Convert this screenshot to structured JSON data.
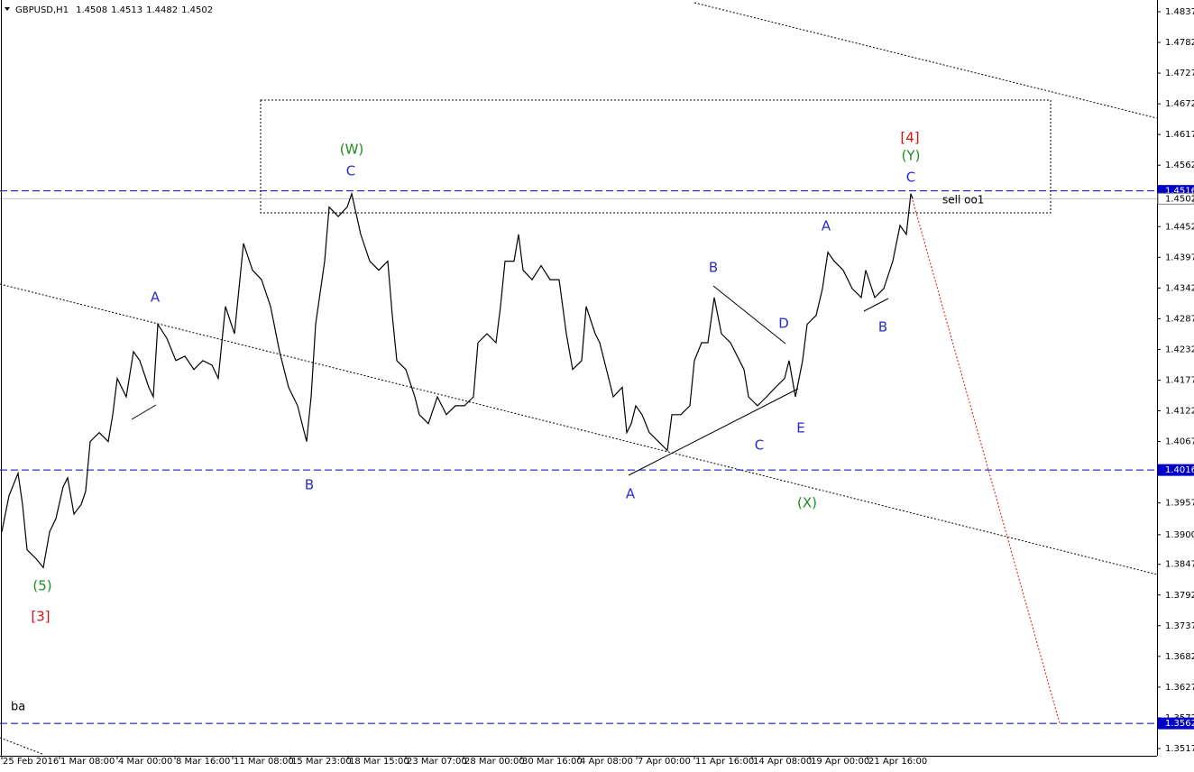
{
  "chart_data": {
    "type": "line",
    "title": "GBPUSD,H1",
    "ohlc": [
      1.4508,
      1.4513,
      1.4482,
      1.4502
    ],
    "xlim": [
      0,
      1283
    ],
    "ylim": [
      1.3504,
      1.4858
    ],
    "xticks": [
      {
        "value": 2,
        "label": "25 Feb 2016"
      },
      {
        "value": 66,
        "label": "1 Mar 08:00"
      },
      {
        "value": 130,
        "label": "4 Mar 00:00"
      },
      {
        "value": 194,
        "label": "8 Mar 16:00"
      },
      {
        "value": 258,
        "label": "11 Mar 08:00"
      },
      {
        "value": 322,
        "label": "15 Mar 23:00"
      },
      {
        "value": 386,
        "label": "18 Mar 15:00"
      },
      {
        "value": 450,
        "label": "23 Mar 07:00"
      },
      {
        "value": 514,
        "label": "28 Mar 00:00"
      },
      {
        "value": 578,
        "label": "30 Mar 16:00"
      },
      {
        "value": 642,
        "label": "4 Apr 08:00"
      },
      {
        "value": 706,
        "label": "7 Apr 00:00"
      },
      {
        "value": 770,
        "label": "11 Apr 16:00"
      },
      {
        "value": 834,
        "label": "14 Apr 08:00"
      },
      {
        "value": 898,
        "label": "19 Apr 00:00"
      },
      {
        "value": 962,
        "label": "21 Apr 16:00"
      }
    ],
    "yticks": [
      1.4837,
      1.4782,
      1.4727,
      1.4672,
      1.4617,
      1.4562,
      1.4452,
      1.4397,
      1.4342,
      1.4287,
      1.4232,
      1.4177,
      1.4122,
      1.4067,
      1.3957,
      {
        "value": 1.39,
        "label": "1.3900"
      },
      1.3847,
      1.3792,
      1.3737,
      1.3682,
      1.3627,
      1.3572,
      1.3517
    ],
    "levels": [
      {
        "value": 1.4516,
        "color": "#0000c8"
      },
      {
        "value": 1.4016,
        "color": "#0000c8"
      },
      {
        "value": 1.3562,
        "color": "#0000c8"
      }
    ],
    "last_price": {
      "value": 1.4502,
      "color": "#c0c0c0"
    },
    "x": [
      2,
      10,
      20,
      25,
      30,
      40,
      48,
      55,
      62,
      70,
      75,
      82,
      90,
      95,
      100,
      110,
      120,
      125,
      130,
      140,
      148,
      155,
      165,
      170,
      175,
      185,
      195,
      205,
      215,
      225,
      235,
      242,
      250,
      260,
      270,
      280,
      290,
      300,
      310,
      320,
      330,
      340,
      345,
      350,
      360,
      365,
      375,
      385,
      390,
      400,
      410,
      420,
      430,
      435,
      440,
      450,
      460,
      465,
      475,
      485,
      495,
      505,
      515,
      525,
      530,
      540,
      550,
      555,
      560,
      570,
      575,
      580,
      590,
      600,
      610,
      620,
      628,
      635,
      645,
      650,
      660,
      665,
      675,
      680,
      690,
      695,
      700,
      705,
      712,
      720,
      730,
      740,
      745,
      755,
      765,
      770,
      778,
      785,
      792,
      800,
      810,
      820,
      825,
      830,
      840,
      850,
      860,
      870,
      875,
      882,
      890,
      895,
      905,
      912,
      918,
      925,
      935,
      945,
      955,
      960,
      970,
      980,
      990,
      998,
      1005,
      1010,
      1012
    ],
    "series": [
      {
        "color": "#000000",
        "values": [
          1.3905,
          1.397,
          1.401,
          1.3954,
          1.3873,
          1.3857,
          1.3841,
          1.3905,
          1.3929,
          1.3986,
          1.4002,
          1.3937,
          1.3954,
          1.3978,
          1.4067,
          1.4083,
          1.4067,
          1.4115,
          1.418,
          1.4147,
          1.4228,
          1.4212,
          1.4164,
          1.4147,
          1.4277,
          1.4252,
          1.4212,
          1.422,
          1.4196,
          1.4212,
          1.4204,
          1.418,
          1.4309,
          1.426,
          1.4422,
          1.4374,
          1.4357,
          1.4309,
          1.4228,
          1.4164,
          1.4131,
          1.4067,
          1.4147,
          1.4277,
          1.439,
          1.4487,
          1.447,
          1.4487,
          1.4511,
          1.4438,
          1.439,
          1.4374,
          1.439,
          1.4293,
          1.4212,
          1.4196,
          1.4147,
          1.4115,
          1.4099,
          1.4147,
          1.4115,
          1.4131,
          1.4131,
          1.4147,
          1.4244,
          1.426,
          1.4244,
          1.4309,
          1.439,
          1.439,
          1.4438,
          1.4374,
          1.4357,
          1.4382,
          1.4357,
          1.4357,
          1.426,
          1.4196,
          1.4212,
          1.4309,
          1.426,
          1.4244,
          1.418,
          1.4147,
          1.4164,
          1.4083,
          1.4099,
          1.4131,
          1.4115,
          1.4083,
          1.4067,
          1.4051,
          1.4115,
          1.4115,
          1.4131,
          1.4212,
          1.4244,
          1.4244,
          1.4325,
          1.426,
          1.4244,
          1.4212,
          1.4196,
          1.4147,
          1.4131,
          1.4147,
          1.4164,
          1.418,
          1.4212,
          1.4147,
          1.4212,
          1.4277,
          1.4293,
          1.4341,
          1.4406,
          1.439,
          1.4374,
          1.4341,
          1.4325,
          1.4374,
          1.4325,
          1.4341,
          1.439,
          1.4454,
          1.4438,
          1.4511,
          1.4502
        ]
      }
    ],
    "annotations": [
      {
        "text": "(5)",
        "color": "#1e8c1e"
      },
      {
        "text": "[3]",
        "color": "#e01010"
      },
      {
        "text": "A",
        "color": "#2a2ad0"
      },
      {
        "text": "B",
        "color": "#2a2ad0"
      },
      {
        "text": "(W)",
        "color": "#1e8c1e"
      },
      {
        "text": "C",
        "color": "#2a2ad0"
      },
      {
        "text": "A",
        "color": "#2a2ad0"
      },
      {
        "text": "B",
        "color": "#2a2ad0"
      },
      {
        "text": "C",
        "color": "#2a2ad0"
      },
      {
        "text": "D",
        "color": "#2a2ad0"
      },
      {
        "text": "E",
        "color": "#2a2ad0"
      },
      {
        "text": "(X)",
        "color": "#1e8c1e"
      },
      {
        "text": "A",
        "color": "#2a2ad0"
      },
      {
        "text": "B",
        "color": "#2a2ad0"
      },
      {
        "text": "C",
        "color": "#2a2ad0"
      },
      {
        "text": "(Y)",
        "color": "#1e8c1e"
      },
      {
        "text": "[4]",
        "color": "#e01010"
      }
    ],
    "order_label": "sell oo1",
    "corner_label": "ba"
  }
}
